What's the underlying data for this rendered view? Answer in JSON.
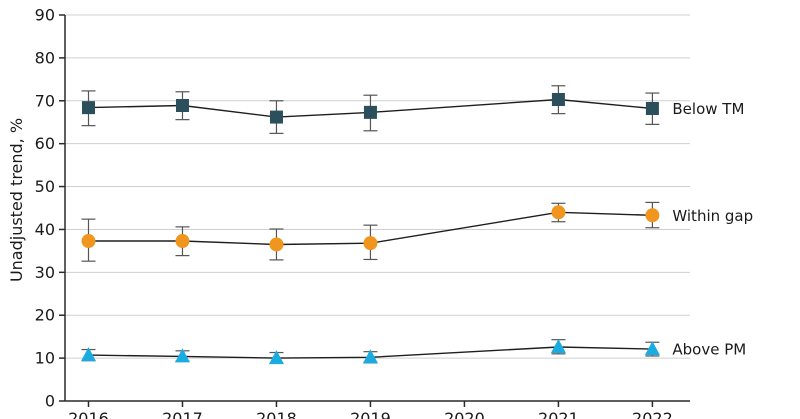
{
  "chart_data": {
    "type": "line",
    "title": "",
    "xlabel": "",
    "ylabel": "Unadjusted trend, %",
    "x": [
      2016,
      2017,
      2018,
      2019,
      2020,
      2021,
      2022
    ],
    "xlim": [
      2015.75,
      2022.4
    ],
    "ylim": [
      0,
      90
    ],
    "yticks": [
      0,
      10,
      20,
      30,
      40,
      50,
      60,
      70,
      80,
      90
    ],
    "grid": true,
    "series": [
      {
        "name": "Below TM",
        "marker": "square",
        "color": "#2c4f5c",
        "x": [
          2016,
          2017,
          2018,
          2019,
          2021,
          2022
        ],
        "values": [
          68.4,
          68.9,
          66.2,
          67.3,
          70.3,
          68.2
        ],
        "lower": [
          64.2,
          65.6,
          62.4,
          63.0,
          67.0,
          64.5
        ],
        "upper": [
          72.3,
          72.1,
          70.0,
          71.3,
          73.5,
          71.8
        ]
      },
      {
        "name": "Within gap",
        "marker": "circle",
        "color": "#f0961e",
        "x": [
          2016,
          2017,
          2018,
          2019,
          2021,
          2022
        ],
        "values": [
          37.3,
          37.3,
          36.5,
          36.8,
          44.0,
          43.3
        ],
        "lower": [
          32.6,
          33.9,
          32.9,
          33.0,
          41.8,
          40.4
        ],
        "upper": [
          42.4,
          40.6,
          40.1,
          41.0,
          46.1,
          46.3
        ]
      },
      {
        "name": "Above PM",
        "marker": "triangle",
        "color": "#1aabe0",
        "x": [
          2016,
          2017,
          2018,
          2019,
          2021,
          2022
        ],
        "values": [
          10.7,
          10.4,
          10.0,
          10.2,
          12.6,
          12.1
        ],
        "lower": [
          9.4,
          9.3,
          8.8,
          8.9,
          11.0,
          10.5
        ],
        "upper": [
          12.0,
          11.7,
          11.3,
          11.5,
          14.3,
          13.7
        ]
      }
    ]
  }
}
